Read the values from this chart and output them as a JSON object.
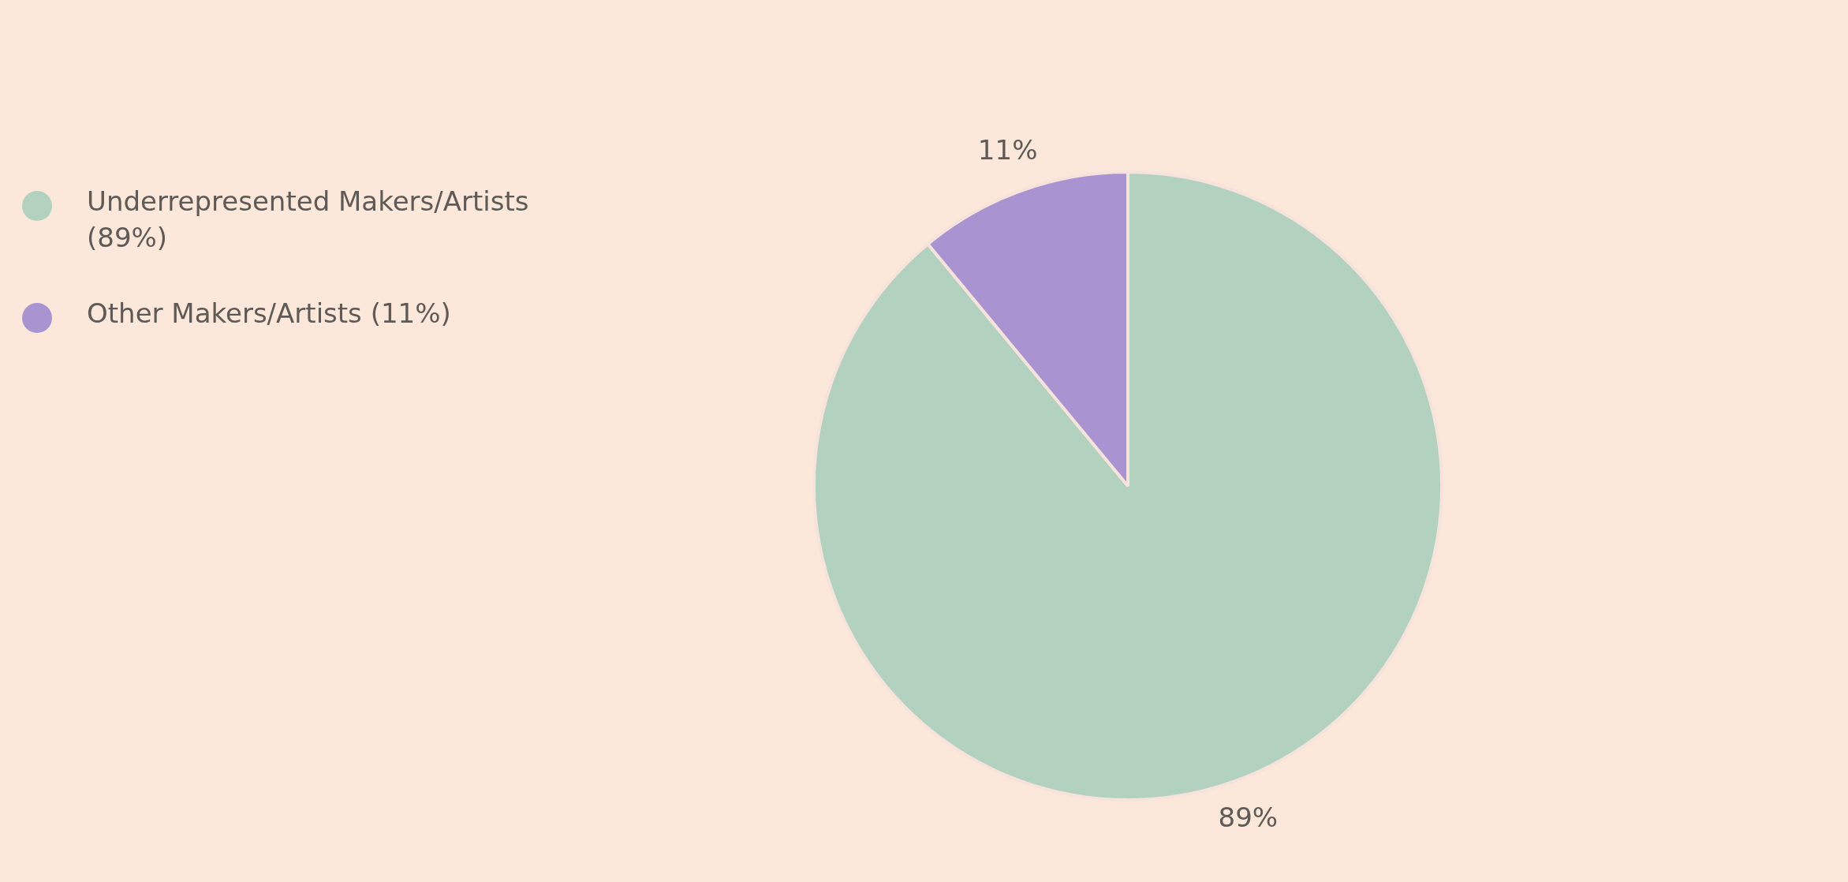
{
  "chart_data": {
    "type": "pie",
    "categories": [
      "Underrepresented Makers/Artists (89%)",
      "Other Makers/Artists (11%)"
    ],
    "values": [
      89,
      11
    ],
    "colors": [
      "#b3d1bf",
      "#a994d1"
    ],
    "value_labels": [
      "89%",
      "11%"
    ],
    "legend": "left"
  }
}
